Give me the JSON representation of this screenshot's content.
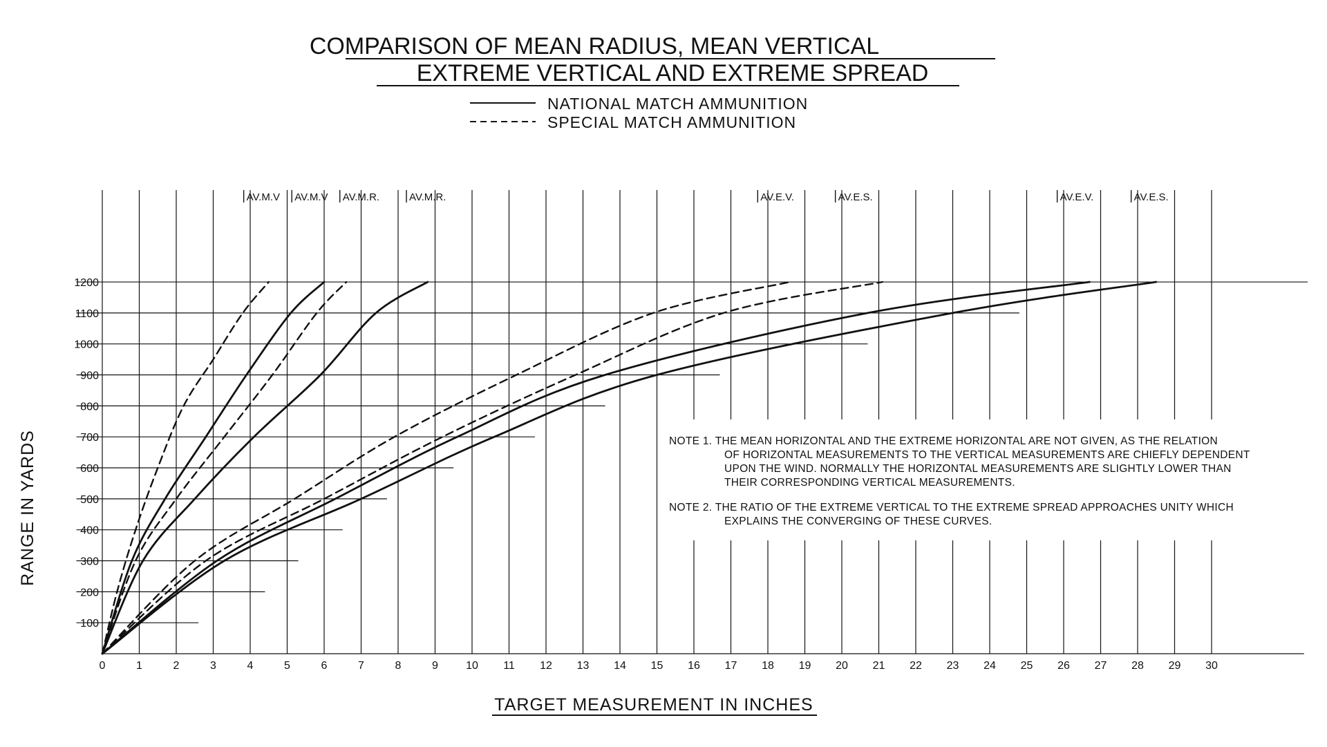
{
  "chart_data": {
    "type": "line",
    "title": [
      "COMPARISON OF MEAN RADIUS, MEAN VERTICAL",
      "EXTREME VERTICAL AND EXTREME SPREAD"
    ],
    "legend": [
      {
        "style": "solid",
        "label": "NATIONAL MATCH AMMUNITION"
      },
      {
        "style": "dashed",
        "label": "SPECIAL  MATCH AMMUNITION"
      }
    ],
    "xlabel": "TARGET MEASUREMENT IN INCHES",
    "ylabel": "RANGE IN YARDS",
    "xlim": [
      0,
      30
    ],
    "ylim": [
      0,
      1200
    ],
    "x_ticks": [
      "0",
      "1",
      "2",
      "3",
      "4",
      "5",
      "6",
      "7",
      "8",
      "9",
      "10",
      "11",
      "12",
      "13",
      "14",
      "15",
      "16",
      "17",
      "18",
      "19",
      "20",
      "21",
      "22",
      "23",
      "24",
      "25",
      "26",
      "27",
      "28",
      "29",
      "30"
    ],
    "y_ticks": [
      "100",
      "200",
      "300",
      "400",
      "500",
      "600",
      "700",
      "800",
      "900",
      "1000",
      "1100",
      "1200"
    ],
    "grid": true,
    "series": [
      {
        "label": "AV.M.V",
        "style": "dashed",
        "x": [
          0,
          0.4,
          0.9,
          1.5,
          2.2,
          3.0,
          3.8,
          4.5
        ],
        "y": [
          0,
          200,
          400,
          600,
          800,
          950,
          1100,
          1200
        ]
      },
      {
        "label": "AV.M.V",
        "style": "solid",
        "x": [
          0,
          0.8,
          1.7,
          2.8,
          3.9,
          5.1,
          6.0
        ],
        "y": [
          0,
          300,
          500,
          700,
          900,
          1100,
          1200
        ]
      },
      {
        "label": "",
        "style": "dashed",
        "x": [
          0,
          0.9,
          2.0,
          3.3,
          4.6,
          5.8,
          6.6
        ],
        "y": [
          0,
          300,
          500,
          700,
          900,
          1100,
          1200
        ]
      },
      {
        "label": "AV.M.R.",
        "style": "solid",
        "x": [
          0,
          1.1,
          2.5,
          4.1,
          5.9,
          7.4,
          8.8
        ],
        "y": [
          0,
          300,
          500,
          700,
          900,
          1100,
          1200
        ]
      },
      {
        "label": "AV.M.R.",
        "style": "dashed",
        "x": [
          0,
          2.5,
          5.2,
          7.9,
          11.2,
          14.9,
          18.6
        ],
        "y": [
          0,
          300,
          500,
          700,
          900,
          1100,
          1200
        ]
      },
      {
        "label": "AV.E.S.",
        "style": "dashed",
        "x": [
          0,
          2.8,
          6.0,
          9.2,
          12.8,
          16.8,
          21.1
        ],
        "y": [
          0,
          300,
          500,
          700,
          900,
          1100,
          1200
        ]
      },
      {
        "label": "AV.E.V.",
        "style": "solid",
        "x": [
          0,
          3.1,
          6.3,
          9.6,
          13.6,
          20.7,
          26.7
        ],
        "y": [
          0,
          300,
          500,
          700,
          900,
          1100,
          1200
        ]
      },
      {
        "label": "AV.E.S.",
        "style": "solid",
        "x": [
          0,
          3.3,
          7.0,
          10.6,
          15.0,
          23.0,
          28.5
        ],
        "y": [
          0,
          300,
          500,
          700,
          900,
          1100,
          1200
        ]
      }
    ],
    "notes": [
      [
        "NOTE  1.  THE MEAN HORIZONTAL AND THE EXTREME HORIZONTAL ARE NOT GIVEN, AS THE RELATION",
        "OF HORIZONTAL MEASUREMENTS TO THE VERTICAL MEASUREMENTS ARE CHIEFLY DEPENDENT",
        "UPON THE WIND. NORMALLY THE HORIZONTAL MEASUREMENTS ARE SLIGHTLY LOWER THAN",
        "THEIR CORRESPONDING VERTICAL MEASUREMENTS."
      ],
      [
        "NOTE  2.  THE RATIO OF THE EXTREME VERTICAL TO THE EXTREME SPREAD APPROACHES UNITY WHICH",
        "EXPLAINS THE CONVERGING OF THESE CURVES."
      ]
    ],
    "colors": {
      "ink": "#111111",
      "paper": "#ffffff"
    }
  }
}
